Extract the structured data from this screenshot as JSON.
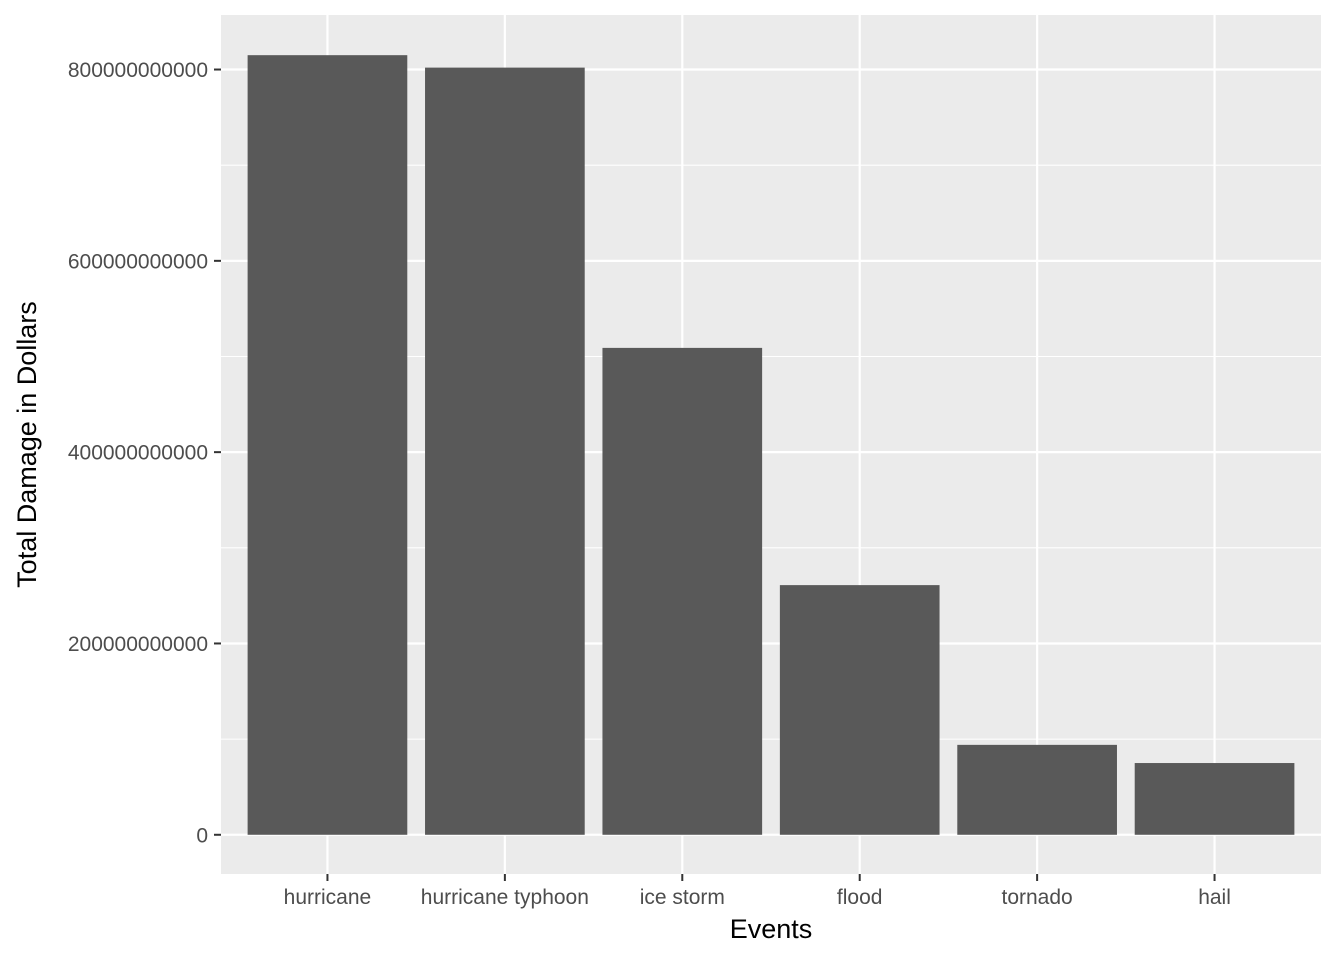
{
  "chart_data": {
    "type": "bar",
    "xlabel": "Events",
    "ylabel": "Total Damage in Dollars",
    "categories": [
      "hurricane",
      "hurricane typhoon",
      "ice storm",
      "flood",
      "tornado",
      "hail"
    ],
    "values": [
      815000000000,
      802000000000,
      509000000000,
      261000000000,
      94000000000,
      75000000000
    ],
    "y_ticks": [
      0,
      200000000000,
      400000000000,
      600000000000,
      800000000000
    ],
    "y_tick_labels": [
      "0",
      "200000000000",
      "400000000000",
      "600000000000",
      "800000000000"
    ],
    "ylim": [
      -41000000000,
      857000000000
    ],
    "grid": true,
    "colors": {
      "panel_background": "#ebebeb",
      "grid_line": "#ffffff",
      "bar_fill": "#595959",
      "tick_mark": "#333333"
    }
  }
}
